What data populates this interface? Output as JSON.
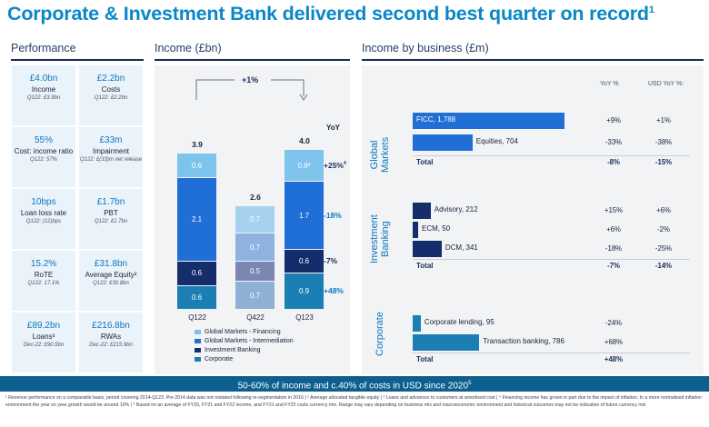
{
  "title": "Corporate & Investment Bank delivered second best quarter on record",
  "title_sup": "1",
  "sections": {
    "performance": "Performance",
    "income": "Income (£bn)",
    "business": "Income by business (£m)"
  },
  "performance": [
    {
      "value": "£4.0bn",
      "label": "Income",
      "sub": "Q122: £3.9bn"
    },
    {
      "value": "£2.2bn",
      "label": "Costs",
      "sub": "Q122: £2.2bn"
    },
    {
      "value": "55%",
      "label": "Cost: income ratio",
      "sub": "Q122: 57%"
    },
    {
      "value": "£33m",
      "label": "Impairment",
      "sub": "Q122: £(33)m net release"
    },
    {
      "value": "10bps",
      "label": "Loan loss rate",
      "sub": "Q122: (12)bps"
    },
    {
      "value": "£1.7bn",
      "label": "PBT",
      "sub": "Q122: £1.7bn"
    },
    {
      "value": "15.2%",
      "label": "RoTE",
      "sub": "Q122: 17.1%"
    },
    {
      "value": "£31.8bn",
      "label": "Average Equity²",
      "sub": "Q122: £30.8bn"
    },
    {
      "value": "£89.2bn",
      "label": "Loans³",
      "sub": "Dec-22: £90.5bn"
    },
    {
      "value": "£216.8bn",
      "label": "RWAs",
      "sub": "Dec-22: £215.9bn"
    }
  ],
  "chart_data": [
    {
      "type": "bar",
      "title": "Income (£bn)",
      "categories": [
        "Q122",
        "Q422",
        "Q123"
      ],
      "totals": [
        "3.9",
        "2.6",
        "4.0"
      ],
      "growth_label": "+1%",
      "yoy_header": "YoY",
      "series": [
        {
          "name": "Corporate",
          "color": "#1b7fb3",
          "values": [
            0.6,
            0.7,
            0.9
          ],
          "yoy": "+48%"
        },
        {
          "name": "Investment Banking",
          "color": "#152d6a",
          "values": [
            0.6,
            0.5,
            0.6
          ],
          "yoy": "-7%"
        },
        {
          "name": "Global Markets - Intermediation",
          "color": "#1f6fd6",
          "values": [
            2.1,
            0.7,
            1.7
          ],
          "yoy": "-18%"
        },
        {
          "name": "Global Markets - Financing",
          "color": "#7ec3ec",
          "values": [
            0.6,
            0.7,
            0.8
          ],
          "yoy": "+25%",
          "yoy_sup": "4"
        }
      ],
      "legend_order": [
        "Global Markets - Financing",
        "Global Markets - Intermediation",
        "Investment Banking",
        "Corporate"
      ],
      "q422_colors": [
        "#8fb0d4",
        "#7b86b3",
        "#8fb2e0",
        "#a6d1ef"
      ],
      "label_q123_financing_sup": "4"
    },
    {
      "type": "bar",
      "title": "Income by business (£m)",
      "columns": [
        "YoY %",
        "USD YoY %:"
      ],
      "groups": [
        {
          "name": "Global Markets",
          "items": [
            {
              "label": "FICC, 1,788",
              "value": 1788,
              "yoy": "+9%",
              "usd_yoy": "+1%",
              "color": "#1f6fd6"
            },
            {
              "label": "Equities, 704",
              "value": 704,
              "yoy": "-33%",
              "usd_yoy": "-38%",
              "color": "#1f6fd6"
            }
          ],
          "total": {
            "label": "Total",
            "yoy": "-8%",
            "usd_yoy": "-15%"
          }
        },
        {
          "name": "Investment Banking",
          "items": [
            {
              "label": "Advisory, 212",
              "value": 212,
              "yoy": "+15%",
              "usd_yoy": "+6%",
              "color": "#152d6a"
            },
            {
              "label": "ECM, 50",
              "value": 50,
              "yoy": "+6%",
              "usd_yoy": "-2%",
              "color": "#152d6a"
            },
            {
              "label": "DCM, 341",
              "value": 341,
              "yoy": "-18%",
              "usd_yoy": "-25%",
              "color": "#152d6a"
            }
          ],
          "total": {
            "label": "Total",
            "yoy": "-7%",
            "usd_yoy": "-14%"
          }
        },
        {
          "name": "Corporate",
          "items": [
            {
              "label": "Corporate lending, 95",
              "value": 95,
              "yoy": "-24%",
              "usd_yoy": "",
              "color": "#1b7fb3"
            },
            {
              "label": "Transaction banking, 786",
              "value": 786,
              "yoy": "+68%",
              "usd_yoy": "",
              "color": "#1b7fb3"
            }
          ],
          "total": {
            "label": "Total",
            "yoy": "+48%",
            "usd_yoy": ""
          }
        }
      ]
    }
  ],
  "banner": "50-60% of income and c.40% of costs in USD since 2020",
  "banner_sup": "5",
  "footnote": "¹ Revenue performance on a comparable basis, period covering 2014-Q123. Pre 2014 data was not restated following re-segmentation in 2016 | ² Average allocated tangible equity | ³ Loans and advances to customers at amortised cost | ⁴ Financing income has grown in part due to the impact of inflation. In a more normalised inflation environment the year on year growth would be around 10% | ⁵ Based on an average of FY20, FY21 and FY22 income, and FY21 and FY22 costs currency mix. Range may vary depending on business mix and macroeconomic environment and historical outcomes may not be indicative of future currency mix"
}
